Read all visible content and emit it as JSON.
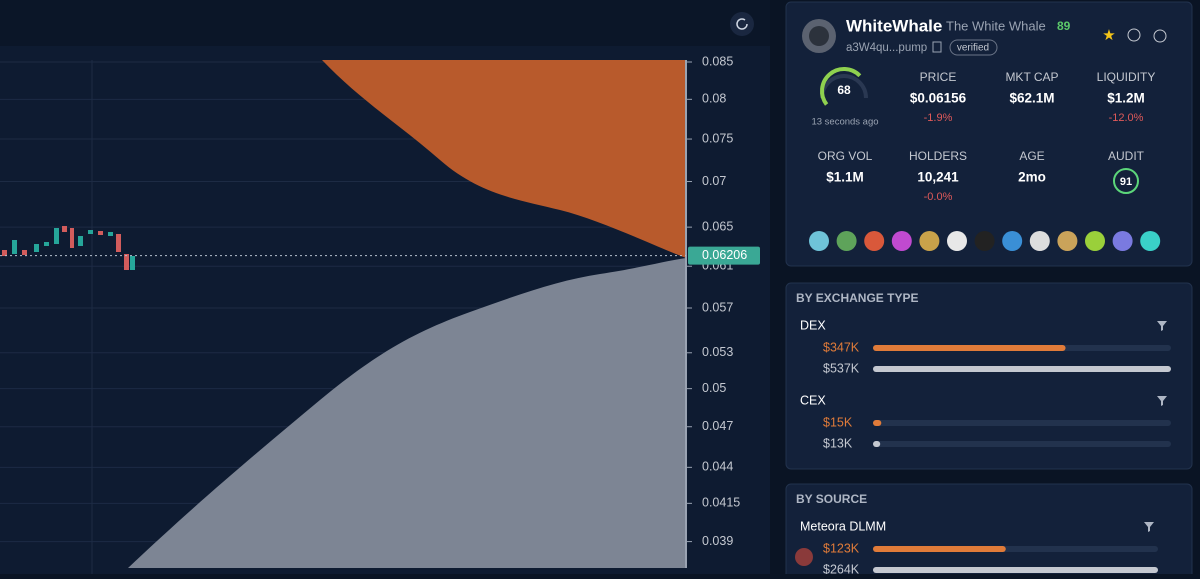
{
  "chart": {
    "log_scale": true,
    "ylim": [
      0.037,
      0.085
    ],
    "yticks": [
      0.085,
      0.08,
      0.075,
      0.07,
      0.065,
      0.061,
      0.057,
      0.053,
      0.05,
      0.047,
      0.044,
      0.0415,
      0.039
    ],
    "current_price": 0.06206,
    "ask_color": "#b85a2c",
    "bid_color": "#7d8594"
  },
  "token": {
    "name": "WhiteWhale",
    "full_name": "The White Whale",
    "score": 89,
    "address": "a3W4qu...pump",
    "badge": "verified"
  },
  "gauge": {
    "value": 68,
    "max": 100,
    "updated": "13 seconds ago"
  },
  "stats": [
    {
      "label": "PRICE",
      "value": "$0.06156",
      "change": "-1.9%"
    },
    {
      "label": "MKT CAP",
      "value": "$62.1M"
    },
    {
      "label": "LIQUIDITY",
      "value": "$1.2M",
      "change": "-12.0%"
    },
    {
      "label": "ORG VOL",
      "value": "$1.1M"
    },
    {
      "label": "HOLDERS",
      "value": "10,241",
      "change": "-0.0%"
    },
    {
      "label": "AGE",
      "value": "2mo"
    }
  ],
  "audit": {
    "label": "AUDIT",
    "value": 91
  },
  "sections": [
    {
      "title": "BY EXCHANGE TYPE",
      "groups": [
        {
          "name": "DEX",
          "rows": [
            {
              "value": 347000,
              "label": "$347K",
              "color": "#e07b39"
            },
            {
              "value": 537000,
              "label": "$537K",
              "color": "#c4c8d0"
            }
          ]
        },
        {
          "name": "CEX",
          "rows": [
            {
              "value": 15000,
              "label": "$15K",
              "color": "#e07b39"
            },
            {
              "value": 13000,
              "label": "$13K",
              "color": "#c4c8d0"
            }
          ]
        }
      ]
    },
    {
      "title": "BY SOURCE",
      "groups": [
        {
          "name": "Meteora DLMM",
          "rows": [
            {
              "value": 123000,
              "label": "$123K",
              "color": "#e07b39"
            },
            {
              "value": 264000,
              "label": "$264K",
              "color": "#c4c8d0"
            }
          ]
        }
      ]
    }
  ]
}
